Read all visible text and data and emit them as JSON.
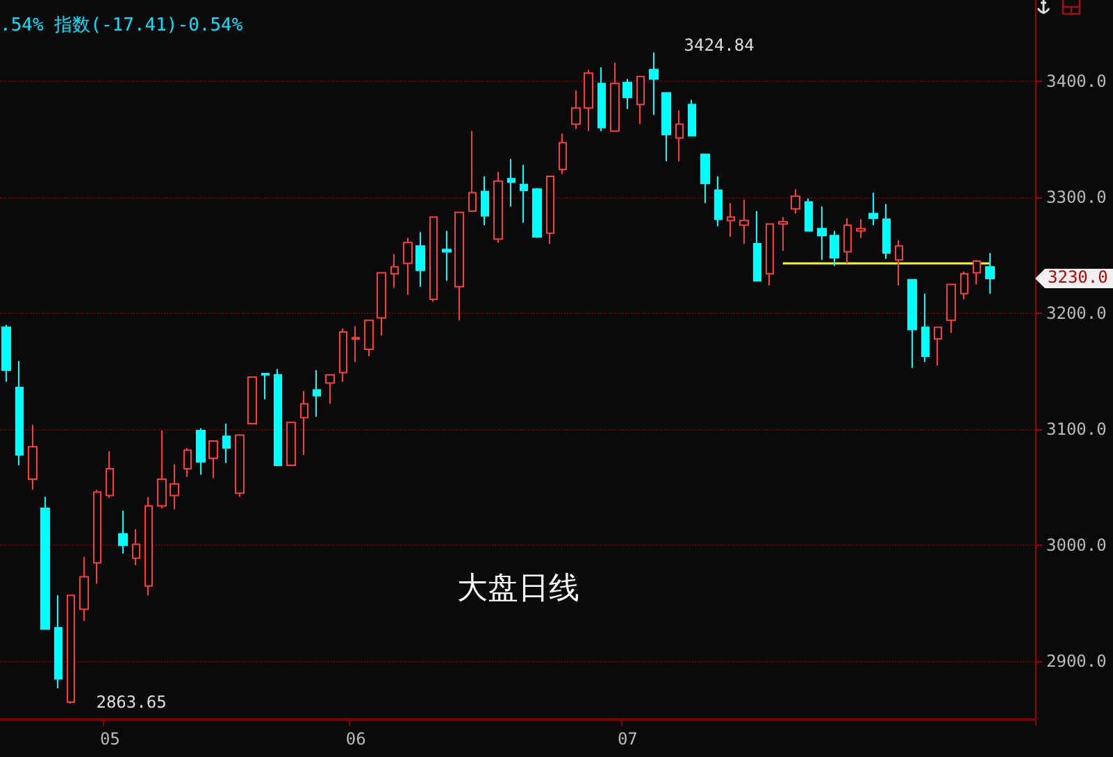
{
  "chart_data": {
    "type": "candlestick",
    "title": "大盘日线",
    "annotations": [
      ".54% 指数(-17.41)-0.54%",
      "3424.84",
      "2863.65",
      "3230.0"
    ],
    "categories": [
      null,
      null,
      null,
      null,
      null,
      null,
      null,
      null,
      "05",
      null,
      null,
      null,
      null,
      null,
      null,
      null,
      null,
      null,
      null,
      null,
      null,
      null,
      null,
      null,
      null,
      null,
      null,
      "06",
      null,
      null,
      null,
      null,
      null,
      null,
      null,
      null,
      null,
      null,
      null,
      null,
      null,
      null,
      null,
      null,
      null,
      null,
      null,
      null,
      "07",
      null,
      null,
      null,
      null,
      null,
      null,
      null,
      null,
      null,
      null,
      null,
      null,
      null,
      null,
      null,
      null,
      null,
      null,
      null,
      null,
      null,
      null,
      null,
      null,
      null,
      null,
      null,
      null
    ],
    "ohlc": [
      [
        3188,
        3190,
        3141,
        3151
      ],
      [
        3136,
        3159,
        3069,
        3078
      ],
      [
        3057,
        3104,
        3048,
        3085
      ],
      [
        3032,
        3042,
        2928,
        2928
      ],
      [
        2929,
        2957,
        2877,
        2885
      ],
      [
        2865,
        2957,
        2863.65,
        2957
      ],
      [
        2945,
        2990,
        2935,
        2973
      ],
      [
        2985,
        3048,
        2967,
        3046
      ],
      [
        3043,
        3081,
        3041,
        3066
      ],
      [
        3010,
        3030,
        2993,
        3000
      ],
      [
        2989,
        3014,
        2983,
        3001
      ],
      [
        2965,
        3042,
        2957,
        3034
      ],
      [
        3034,
        3099,
        3032,
        3057
      ],
      [
        3043,
        3070,
        3031,
        3053
      ],
      [
        3066,
        3084,
        3059,
        3082
      ],
      [
        3099,
        3101,
        3061,
        3072
      ],
      [
        3075,
        3090,
        3058,
        3090
      ],
      [
        3094,
        3105,
        3071,
        3084
      ],
      [
        3045,
        3095,
        3042,
        3095
      ],
      [
        3105,
        3145,
        3105,
        3145
      ],
      [
        3148,
        3148,
        3126,
        3147
      ],
      [
        3147,
        3152,
        3069,
        3069
      ],
      [
        3069,
        3106,
        3069,
        3106
      ],
      [
        3110,
        3133,
        3078,
        3122
      ],
      [
        3134,
        3151,
        3111,
        3129
      ],
      [
        3140,
        3147,
        3122,
        3147
      ],
      [
        3149,
        3187,
        3141,
        3184
      ],
      [
        3178,
        3189,
        3158,
        3179
      ],
      [
        3169,
        3194,
        3163,
        3194
      ],
      [
        3196,
        3235,
        3181,
        3235
      ],
      [
        3234,
        3251,
        3222,
        3240
      ],
      [
        3243,
        3265,
        3216,
        3261
      ],
      [
        3258,
        3270,
        3223,
        3237
      ],
      [
        3212,
        3283,
        3210,
        3283
      ],
      [
        3255,
        3271,
        3228,
        3253
      ],
      [
        3223,
        3287,
        3194,
        3287
      ],
      [
        3288,
        3357,
        3288,
        3304
      ],
      [
        3305,
        3318,
        3276,
        3284
      ],
      [
        3264,
        3322,
        3261,
        3314
      ],
      [
        3316,
        3333,
        3292,
        3313
      ],
      [
        3311,
        3328,
        3278,
        3306
      ],
      [
        3307,
        3308,
        3265,
        3266
      ],
      [
        3269,
        3318,
        3260,
        3318
      ],
      [
        3324,
        3355,
        3320,
        3347
      ],
      [
        3363,
        3392,
        3359,
        3377
      ],
      [
        3377,
        3410,
        3357,
        3407
      ],
      [
        3398,
        3412,
        3357,
        3360
      ],
      [
        3357,
        3416,
        3357,
        3398
      ],
      [
        3399,
        3402,
        3376,
        3386
      ],
      [
        3380,
        3404,
        3363,
        3404
      ],
      [
        3410,
        3424.84,
        3371,
        3402
      ],
      [
        3390,
        3390,
        3331,
        3354
      ],
      [
        3351,
        3375,
        3331,
        3363
      ],
      [
        3380,
        3384,
        3353,
        3353
      ],
      [
        3337,
        3337,
        3295,
        3312
      ],
      [
        3306,
        3318,
        3275,
        3281
      ],
      [
        3280,
        3295,
        3266,
        3283
      ],
      [
        3276,
        3298,
        3260,
        3280
      ],
      [
        3260,
        3288,
        3228,
        3228
      ],
      [
        3234,
        3277,
        3224,
        3277
      ],
      [
        3277,
        3283,
        3254,
        3279
      ],
      [
        3290,
        3307,
        3286,
        3301
      ],
      [
        3296,
        3299,
        3271,
        3271
      ],
      [
        3273,
        3292,
        3246,
        3267
      ],
      [
        3267,
        3271,
        3241,
        3248
      ],
      [
        3253,
        3282,
        3243,
        3276
      ],
      [
        3271,
        3281,
        3265,
        3273
      ],
      [
        3286,
        3304,
        3276,
        3282
      ],
      [
        3281,
        3294,
        3247,
        3252
      ],
      [
        3246,
        3263,
        3224,
        3258
      ],
      [
        3229,
        3229,
        3153,
        3186
      ],
      [
        3188,
        3217,
        3158,
        3163
      ],
      [
        3178,
        3188,
        3155,
        3188
      ],
      [
        3194,
        3225,
        3183,
        3225
      ],
      [
        3217,
        3236,
        3212,
        3234
      ],
      [
        3235,
        3246,
        3225,
        3245
      ],
      [
        3240,
        3252,
        3217,
        3230
      ]
    ],
    "colors": [
      "#00ffff",
      "#00ffff",
      "#ff3c3c",
      "#00ffff",
      "#00ffff",
      "#ff3c3c",
      "#ff3c3c",
      "#ff3c3c",
      "#ff3c3c",
      "#00ffff",
      "#ff3c3c",
      "#ff3c3c",
      "#ff3c3c",
      "#ff3c3c",
      "#ff3c3c",
      "#00ffff",
      "#ff3c3c",
      "#00ffff",
      "#ff3c3c",
      "#ff3c3c",
      "#00ffff",
      "#00ffff",
      "#ff3c3c",
      "#ff3c3c",
      "#00ffff",
      "#ff3c3c",
      "#ff3c3c",
      "#ff3c3c",
      "#ff3c3c",
      "#ff3c3c",
      "#ff3c3c",
      "#ff3c3c",
      "#00ffff",
      "#ff3c3c",
      "#00ffff",
      "#ff3c3c",
      "#ff3c3c",
      "#00ffff",
      "#ff3c3c",
      "#00ffff",
      "#00ffff",
      "#00ffff",
      "#ff3c3c",
      "#ff3c3c",
      "#ff3c3c",
      "#ff3c3c",
      "#00ffff",
      "#ff3c3c",
      "#00ffff",
      "#ff3c3c",
      "#00ffff",
      "#00ffff",
      "#ff3c3c",
      "#00ffff",
      "#00ffff",
      "#00ffff",
      "#ff3c3c",
      "#ff3c3c",
      "#00ffff",
      "#ff3c3c",
      "#ff3c3c",
      "#ff3c3c",
      "#00ffff",
      "#00ffff",
      "#00ffff",
      "#ff3c3c",
      "#ff3c3c",
      "#00ffff",
      "#00ffff",
      "#ff3c3c",
      "#00ffff",
      "#00ffff",
      "#ff3c3c",
      "#ff3c3c",
      "#ff3c3c",
      "#ff3c3c",
      "#00ffff"
    ],
    "series": [
      {
        "type": "line",
        "color": "#ffff00",
        "marker": "none",
        "values": [
          null,
          null,
          null,
          null,
          null,
          null,
          null,
          null,
          null,
          null,
          null,
          null,
          null,
          null,
          null,
          null,
          null,
          null,
          null,
          null,
          null,
          null,
          null,
          null,
          null,
          null,
          null,
          null,
          null,
          null,
          null,
          null,
          null,
          null,
          null,
          null,
          null,
          null,
          null,
          null,
          null,
          null,
          null,
          null,
          null,
          null,
          null,
          null,
          null,
          null,
          null,
          null,
          null,
          null,
          null,
          null,
          null,
          null,
          null,
          null,
          3243,
          3243,
          3243,
          3243,
          3243,
          3243,
          3243,
          3243,
          3243,
          3243,
          3243,
          3243,
          3243,
          3243,
          3243,
          3243,
          3243
        ]
      }
    ],
    "ylim": [
      2850,
      3470
    ],
    "yticks": [
      {
        "value": 2900,
        "label": "2900.0"
      },
      {
        "value": 3000,
        "label": "3000.0"
      },
      {
        "value": 3100,
        "label": "3100.0"
      },
      {
        "value": 3200,
        "label": "3200.0"
      },
      {
        "value": 3300,
        "label": "3300.0"
      },
      {
        "value": 3400,
        "label": "3400.0"
      }
    ],
    "grid": "y"
  }
}
